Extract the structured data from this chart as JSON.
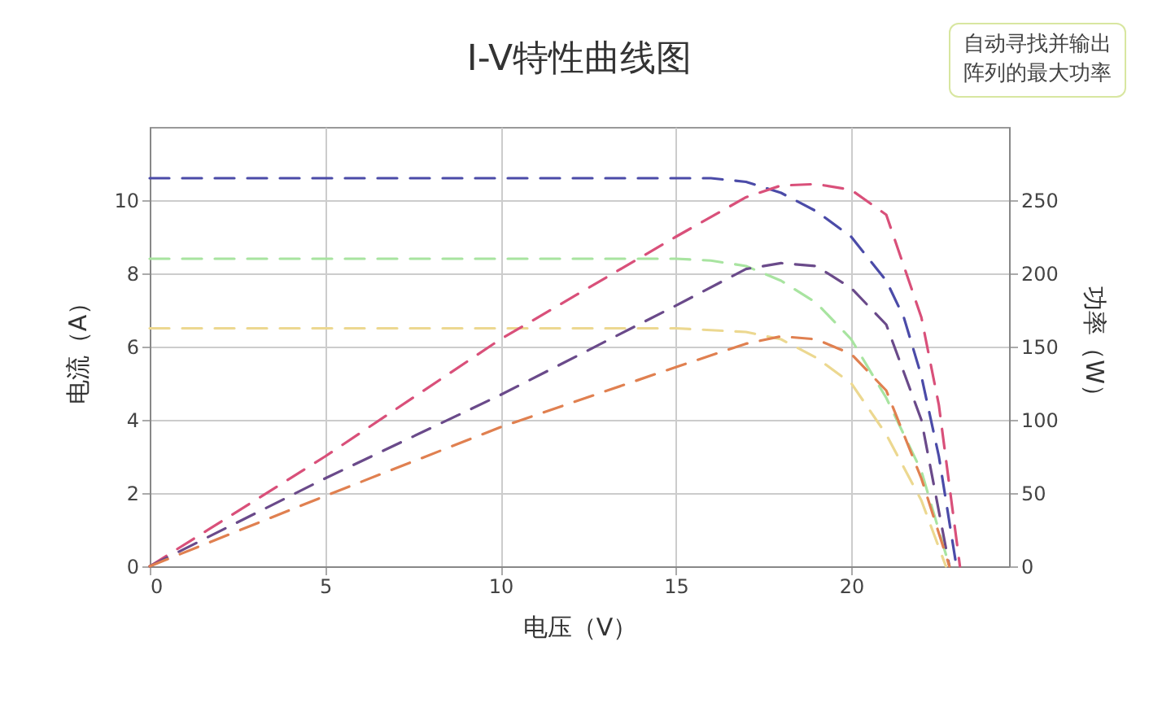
{
  "chart_data": {
    "type": "line",
    "title": "I-V特性曲线图",
    "xlabel": "电压（V）",
    "ylabel": "电流（A）",
    "y2label": "功率（W）",
    "annotations": [
      "自动寻找并输出阵列的最大功率"
    ],
    "xlim": [
      0,
      24.5
    ],
    "xticks": [
      0,
      5,
      10,
      15,
      20
    ],
    "ylim": [
      0,
      12
    ],
    "yticks": [
      0,
      2,
      4,
      6,
      8,
      10
    ],
    "y2lim": [
      0,
      300
    ],
    "y2ticks": [
      0,
      50,
      100,
      150,
      200,
      250
    ],
    "grid": true,
    "line_style": "dashed",
    "marker": "none",
    "series": [
      {
        "color": "#4b4ba8",
        "x": [
          0,
          16,
          17,
          18,
          19,
          20,
          21,
          21.5,
          22,
          22.5,
          23
        ],
        "values": [
          10.6,
          10.6,
          10.5,
          10.2,
          9.7,
          9.0,
          7.8,
          6.8,
          5.2,
          3.0,
          0
        ]
      },
      {
        "color": "#a8e4a0",
        "x": [
          0,
          15,
          16,
          17,
          18,
          19,
          20,
          21,
          22,
          22.8
        ],
        "values": [
          8.4,
          8.4,
          8.35,
          8.2,
          7.8,
          7.2,
          6.2,
          4.6,
          2.6,
          0
        ]
      },
      {
        "color": "#ecd890",
        "x": [
          0,
          15,
          17,
          18,
          19,
          20,
          21,
          22,
          22.7
        ],
        "values": [
          6.5,
          6.5,
          6.4,
          6.2,
          5.7,
          5.0,
          3.6,
          1.8,
          0
        ]
      },
      {
        "color": "#d9507a",
        "axis": "y2",
        "x": [
          0,
          5,
          10,
          15,
          17,
          18,
          19,
          20,
          21,
          22,
          22.5,
          23.1
        ],
        "values": [
          0,
          75,
          155,
          225,
          252,
          260,
          261,
          257,
          240,
          170,
          110,
          0
        ]
      },
      {
        "color": "#6a4a8a",
        "axis": "y2",
        "x": [
          0,
          5,
          10,
          15,
          17,
          18,
          19,
          20,
          21,
          22,
          22.8
        ],
        "values": [
          0,
          60,
          117,
          178,
          203,
          207,
          205,
          190,
          165,
          100,
          0
        ]
      },
      {
        "color": "#e08050",
        "axis": "y2",
        "x": [
          0,
          5,
          10,
          15,
          17,
          18,
          19,
          20,
          21,
          22,
          22.8
        ],
        "values": [
          0,
          48,
          95,
          136,
          152,
          157,
          155,
          145,
          120,
          60,
          0
        ]
      }
    ]
  }
}
